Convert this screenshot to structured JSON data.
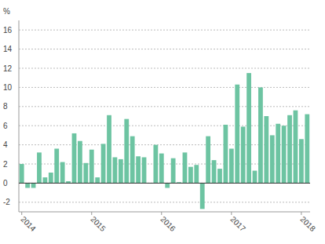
{
  "chart_data": {
    "type": "bar",
    "ylabel": "%",
    "categories": [
      "2014",
      null,
      null,
      null,
      null,
      null,
      null,
      null,
      null,
      null,
      null,
      null,
      "2015",
      null,
      null,
      null,
      null,
      null,
      null,
      null,
      null,
      null,
      null,
      null,
      "2016",
      null,
      null,
      null,
      null,
      null,
      null,
      null,
      null,
      null,
      null,
      null,
      "2017",
      null,
      null,
      null,
      null,
      null,
      null,
      null,
      null,
      null,
      null,
      null,
      "2018",
      null
    ],
    "values": [
      2.0,
      -0.5,
      -0.5,
      3.2,
      0.6,
      1.1,
      3.6,
      2.2,
      0.2,
      5.2,
      4.4,
      2.1,
      3.5,
      0.6,
      4.1,
      7.1,
      2.7,
      2.5,
      6.7,
      4.9,
      2.8,
      2.7,
      0.0,
      4.0,
      3.1,
      -0.5,
      2.6,
      0.1,
      3.2,
      1.7,
      1.9,
      -2.7,
      4.9,
      2.4,
      1.5,
      6.1,
      3.6,
      10.3,
      5.9,
      11.5,
      1.3,
      10.0,
      7.0,
      5.0,
      6.2,
      6.0,
      7.1,
      7.6,
      4.6,
      7.2
    ],
    "color": "#6dc4a2",
    "ylim": [
      -3,
      17
    ],
    "yticks": [
      -2,
      0,
      2,
      4,
      6,
      8,
      10,
      12,
      14,
      16
    ],
    "grid": true
  }
}
